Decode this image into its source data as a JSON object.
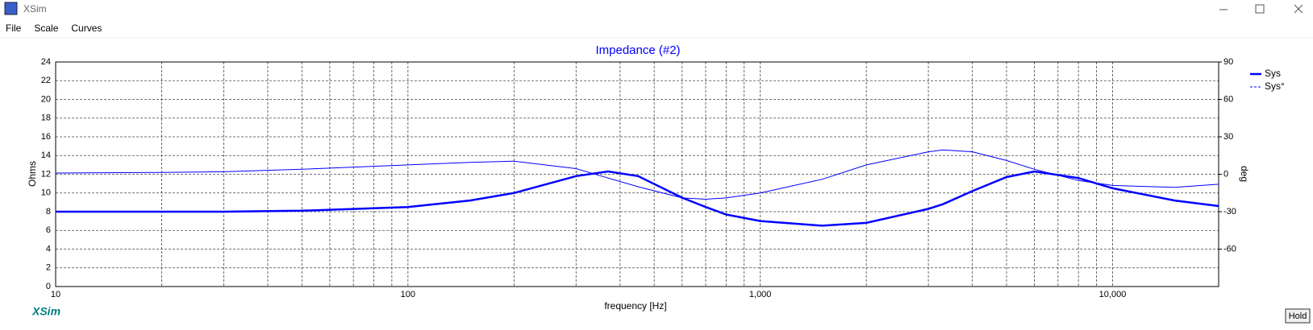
{
  "window": {
    "title": "XSim",
    "menu": [
      "File",
      "Scale",
      "Curves"
    ],
    "logo": "XSim",
    "button": "Hold"
  },
  "chart_data": {
    "type": "line",
    "title": "Impedance (#2)",
    "x_label": "frequency [Hz]",
    "y_label": "Ohms",
    "y2_label": "deg",
    "xscale": "log",
    "xlim": [
      10,
      20000
    ],
    "xticks": [
      10,
      100,
      {
        "value": 1000,
        "label": "1,000"
      },
      {
        "value": 10000,
        "label": "10,000"
      }
    ],
    "xgrid_minor": [
      20,
      30,
      40,
      50,
      60,
      70,
      80,
      90,
      200,
      300,
      400,
      500,
      600,
      700,
      800,
      900,
      2000,
      3000,
      4000,
      5000,
      6000,
      7000,
      8000,
      9000
    ],
    "ylim": [
      0,
      24
    ],
    "yticks": [
      0,
      2,
      4,
      6,
      8,
      10,
      12,
      14,
      16,
      18,
      20,
      22,
      24
    ],
    "y2lim": [
      -90,
      90
    ],
    "y2ticks": [
      -60,
      -30,
      0,
      30,
      60,
      90
    ],
    "grid": true,
    "legend": "right",
    "x": [
      10,
      20,
      30,
      50,
      100,
      150,
      200,
      300,
      370,
      450,
      600,
      700,
      800,
      1000,
      1500,
      2000,
      3000,
      3300,
      4000,
      5000,
      6000,
      8000,
      10000,
      15000,
      20000
    ],
    "series": [
      {
        "name": "Sys",
        "color": "#0000ff",
        "width": 2.5,
        "values": [
          8.0,
          8.0,
          8.0,
          8.1,
          8.5,
          9.2,
          10.0,
          11.8,
          12.3,
          11.8,
          9.5,
          8.5,
          7.7,
          7.0,
          6.5,
          6.8,
          8.3,
          8.8,
          10.2,
          11.7,
          12.3,
          11.6,
          10.5,
          9.2,
          8.6
        ]
      },
      {
        "name": "Sys°",
        "color": "#0000ff",
        "width": 1,
        "axis": "y2",
        "values": [
          1,
          1.5,
          2,
          4,
          7.5,
          9.5,
          10.5,
          4.5,
          -3,
          -10,
          -19,
          -20,
          -19,
          -15,
          -4,
          7.5,
          18,
          19.5,
          18,
          11,
          4,
          -5,
          -9,
          -10.5,
          -8
        ]
      }
    ]
  }
}
